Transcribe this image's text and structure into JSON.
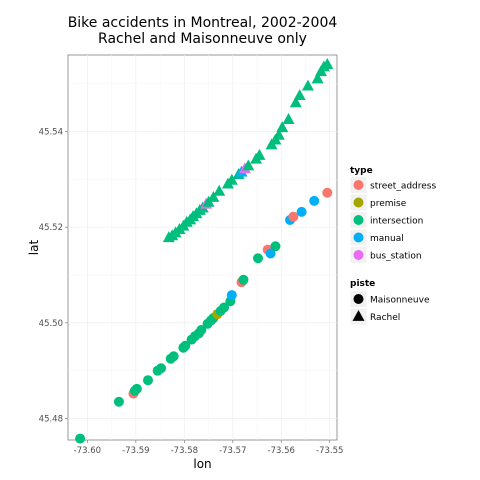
{
  "chart_data": {
    "type": "scatter",
    "title": "Bike accidents in Montreal, 2002-2004\nRachel and Maisonneuve only",
    "xlabel": "lon",
    "ylabel": "lat",
    "xlim": [
      -73.604,
      -73.5485
    ],
    "ylim": [
      45.4755,
      45.556
    ],
    "x_ticks": [
      {
        "value": -73.6,
        "label": "-73.60"
      },
      {
        "value": -73.59,
        "label": "-73.59"
      },
      {
        "value": -73.58,
        "label": "-73.58"
      },
      {
        "value": -73.57,
        "label": "-73.57"
      },
      {
        "value": -73.56,
        "label": "-73.56"
      },
      {
        "value": -73.55,
        "label": "-73.55"
      }
    ],
    "y_ticks": [
      {
        "value": 45.48,
        "label": "45.48"
      },
      {
        "value": 45.5,
        "label": "45.50"
      },
      {
        "value": 45.52,
        "label": "45.52"
      },
      {
        "value": 45.54,
        "label": "45.54"
      }
    ],
    "grid": true,
    "legend_position": "right",
    "legend_type": {
      "title": "type",
      "entries": [
        {
          "key": "street_address",
          "label": "street_address",
          "color": "#F8766D"
        },
        {
          "key": "premise",
          "label": "premise",
          "color": "#A3A500"
        },
        {
          "key": "intersection",
          "label": "intersection",
          "color": "#00BF7D"
        },
        {
          "key": "manual",
          "label": "manual",
          "color": "#00B0F6"
        },
        {
          "key": "bus_station",
          "label": "bus_station",
          "color": "#E76BF3"
        }
      ]
    },
    "legend_piste": {
      "title": "piste",
      "entries": [
        {
          "key": "Maisonneuve",
          "label": "Maisonneuve",
          "shape": "circle"
        },
        {
          "key": "Rachel",
          "label": "Rachel",
          "shape": "triangle"
        }
      ]
    },
    "series": [
      {
        "name": "Maisonneuve",
        "shape": "circle",
        "points": [
          {
            "x": -73.6015,
            "y": 45.4758,
            "type": "intersection"
          },
          {
            "x": -73.5935,
            "y": 45.4835,
            "type": "intersection"
          },
          {
            "x": -73.5905,
            "y": 45.4852,
            "type": "street_address"
          },
          {
            "x": -73.5902,
            "y": 45.4858,
            "type": "intersection"
          },
          {
            "x": -73.5898,
            "y": 45.4862,
            "type": "intersection"
          },
          {
            "x": -73.5875,
            "y": 45.488,
            "type": "intersection"
          },
          {
            "x": -73.5855,
            "y": 45.49,
            "type": "intersection"
          },
          {
            "x": -73.5848,
            "y": 45.4905,
            "type": "intersection"
          },
          {
            "x": -73.5828,
            "y": 45.4925,
            "type": "intersection"
          },
          {
            "x": -73.5822,
            "y": 45.493,
            "type": "intersection"
          },
          {
            "x": -73.5802,
            "y": 45.4948,
            "type": "intersection"
          },
          {
            "x": -73.5798,
            "y": 45.4952,
            "type": "intersection"
          },
          {
            "x": -73.5785,
            "y": 45.4965,
            "type": "intersection"
          },
          {
            "x": -73.5778,
            "y": 45.4972,
            "type": "intersection"
          },
          {
            "x": -73.577,
            "y": 45.4978,
            "type": "intersection"
          },
          {
            "x": -73.5765,
            "y": 45.4985,
            "type": "intersection"
          },
          {
            "x": -73.5752,
            "y": 45.4998,
            "type": "intersection"
          },
          {
            "x": -73.5745,
            "y": 45.5005,
            "type": "intersection"
          },
          {
            "x": -73.574,
            "y": 45.501,
            "type": "intersection"
          },
          {
            "x": -73.5732,
            "y": 45.5018,
            "type": "premise"
          },
          {
            "x": -73.5725,
            "y": 45.5025,
            "type": "intersection"
          },
          {
            "x": -73.5718,
            "y": 45.5032,
            "type": "intersection"
          },
          {
            "x": -73.5705,
            "y": 45.5045,
            "type": "intersection"
          },
          {
            "x": -73.5702,
            "y": 45.5058,
            "type": "manual"
          },
          {
            "x": -73.5682,
            "y": 45.5085,
            "type": "street_address"
          },
          {
            "x": -73.5678,
            "y": 45.509,
            "type": "intersection"
          },
          {
            "x": -73.5648,
            "y": 45.5135,
            "type": "intersection"
          },
          {
            "x": -73.5628,
            "y": 45.5153,
            "type": "street_address"
          },
          {
            "x": -73.5622,
            "y": 45.5145,
            "type": "manual"
          },
          {
            "x": -73.5612,
            "y": 45.516,
            "type": "intersection"
          },
          {
            "x": -73.5582,
            "y": 45.5215,
            "type": "manual"
          },
          {
            "x": -73.5575,
            "y": 45.5222,
            "type": "street_address"
          },
          {
            "x": -73.5558,
            "y": 45.5232,
            "type": "manual"
          },
          {
            "x": -73.5532,
            "y": 45.5255,
            "type": "manual"
          },
          {
            "x": -73.5505,
            "y": 45.5272,
            "type": "street_address"
          }
        ]
      },
      {
        "name": "Rachel",
        "shape": "triangle",
        "points": [
          {
            "x": -73.5832,
            "y": 45.5178,
            "type": "intersection"
          },
          {
            "x": -73.5825,
            "y": 45.5182,
            "type": "intersection"
          },
          {
            "x": -73.5818,
            "y": 45.5188,
            "type": "intersection"
          },
          {
            "x": -73.581,
            "y": 45.5195,
            "type": "intersection"
          },
          {
            "x": -73.5802,
            "y": 45.5202,
            "type": "intersection"
          },
          {
            "x": -73.5795,
            "y": 45.521,
            "type": "intersection"
          },
          {
            "x": -73.5788,
            "y": 45.5215,
            "type": "intersection"
          },
          {
            "x": -73.5782,
            "y": 45.5222,
            "type": "intersection"
          },
          {
            "x": -73.5775,
            "y": 45.5228,
            "type": "intersection"
          },
          {
            "x": -73.5768,
            "y": 45.5235,
            "type": "intersection"
          },
          {
            "x": -73.5762,
            "y": 45.524,
            "type": "intersection"
          },
          {
            "x": -73.5755,
            "y": 45.5248,
            "type": "bus_station"
          },
          {
            "x": -73.575,
            "y": 45.5252,
            "type": "intersection"
          },
          {
            "x": -73.574,
            "y": 45.5262,
            "type": "intersection"
          },
          {
            "x": -73.5728,
            "y": 45.5275,
            "type": "intersection"
          },
          {
            "x": -73.571,
            "y": 45.529,
            "type": "intersection"
          },
          {
            "x": -73.5702,
            "y": 45.5298,
            "type": "intersection"
          },
          {
            "x": -73.5688,
            "y": 45.531,
            "type": "intersection"
          },
          {
            "x": -73.5682,
            "y": 45.5315,
            "type": "manual"
          },
          {
            "x": -73.5675,
            "y": 45.5322,
            "type": "bus_station"
          },
          {
            "x": -73.5668,
            "y": 45.5328,
            "type": "intersection"
          },
          {
            "x": -73.5652,
            "y": 45.5342,
            "type": "intersection"
          },
          {
            "x": -73.5645,
            "y": 45.535,
            "type": "intersection"
          },
          {
            "x": -73.562,
            "y": 45.5372,
            "type": "intersection"
          },
          {
            "x": -73.5612,
            "y": 45.5382,
            "type": "intersection"
          },
          {
            "x": -73.5605,
            "y": 45.5392,
            "type": "intersection"
          },
          {
            "x": -73.5598,
            "y": 45.5408,
            "type": "intersection"
          },
          {
            "x": -73.5585,
            "y": 45.5425,
            "type": "intersection"
          },
          {
            "x": -73.557,
            "y": 45.546,
            "type": "intersection"
          },
          {
            "x": -73.5562,
            "y": 45.5475,
            "type": "intersection"
          },
          {
            "x": -73.5545,
            "y": 45.5495,
            "type": "intersection"
          },
          {
            "x": -73.5525,
            "y": 45.551,
            "type": "intersection"
          },
          {
            "x": -73.5518,
            "y": 45.5525,
            "type": "intersection"
          },
          {
            "x": -73.5512,
            "y": 45.5535,
            "type": "intersection"
          },
          {
            "x": -73.5505,
            "y": 45.554,
            "type": "intersection"
          }
        ]
      }
    ]
  }
}
